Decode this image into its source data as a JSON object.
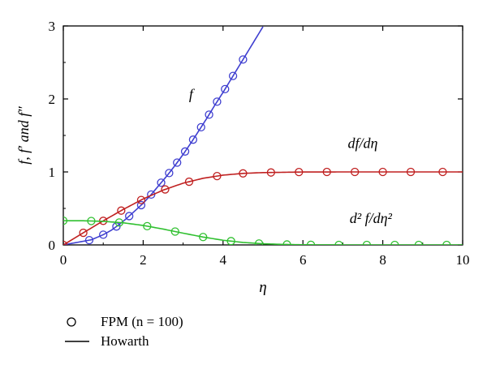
{
  "chart_data": {
    "type": "line",
    "xlabel": "η",
    "ylabel": "f, f′ and f″",
    "xlim": [
      0,
      10
    ],
    "ylim": [
      0,
      3
    ],
    "xticks": [
      "0",
      "2",
      "4",
      "6",
      "8",
      "10"
    ],
    "yticks": [
      "0",
      "1",
      "2",
      "3"
    ],
    "grid": false,
    "legend_position": "bottom-left",
    "series": [
      {
        "name": "f",
        "color": "#3f3fd0",
        "label": "f",
        "x": [
          0,
          0.7,
          1.0,
          1.2,
          1.4,
          1.6,
          1.8,
          2.0,
          2.2,
          2.4,
          2.6,
          2.8,
          3.0,
          3.2,
          3.4,
          3.6,
          3.8,
          4.0,
          4.2,
          4.4,
          4.6
        ],
        "values": [
          0,
          0.07,
          0.14,
          0.2,
          0.28,
          0.37,
          0.47,
          0.57,
          0.69,
          0.82,
          0.95,
          1.09,
          1.24,
          1.4,
          1.57,
          1.74,
          1.92,
          2.09,
          2.27,
          2.45,
          2.63
        ],
        "markers_x": [
          0.65,
          1.0,
          1.33,
          1.65,
          1.95,
          2.2,
          2.45,
          2.65,
          2.85,
          3.05,
          3.25,
          3.45,
          3.65,
          3.85,
          4.05,
          4.25,
          4.5
        ]
      },
      {
        "name": "df/dη",
        "color": "#c02020",
        "label": "df/dη",
        "x": [
          0,
          0.5,
          1.0,
          1.5,
          2.0,
          2.5,
          3.0,
          3.5,
          4.0,
          4.5,
          5.0,
          6.0,
          7.0,
          8.0,
          9.0,
          10.0
        ],
        "values": [
          0,
          0.166,
          0.33,
          0.486,
          0.63,
          0.751,
          0.846,
          0.913,
          0.956,
          0.98,
          0.991,
          0.999,
          1.0,
          1.0,
          1.0,
          1.0
        ],
        "markers_x": [
          0,
          0.5,
          1.0,
          1.45,
          1.95,
          2.55,
          3.15,
          3.85,
          4.5,
          5.2,
          5.9,
          6.6,
          7.3,
          8.0,
          8.7,
          9.5
        ]
      },
      {
        "name": "d²f/dη²",
        "color": "#30c030",
        "label": "d² f/dη²",
        "x": [
          0,
          0.5,
          1.0,
          1.5,
          2.0,
          2.5,
          3.0,
          3.5,
          4.0,
          4.5,
          5.0,
          5.5,
          6.0,
          7.0,
          8.0,
          10.0
        ],
        "values": [
          0.332,
          0.331,
          0.323,
          0.303,
          0.267,
          0.217,
          0.161,
          0.108,
          0.064,
          0.034,
          0.016,
          0.007,
          0.002,
          0.0,
          0.0,
          0.0
        ],
        "markers_x": [
          0,
          0.7,
          1.4,
          2.1,
          2.8,
          3.5,
          4.2,
          4.9,
          5.6,
          6.2,
          6.9,
          7.6,
          8.3,
          8.9,
          9.6
        ]
      }
    ],
    "annotations": [
      {
        "id": "f",
        "text": "f",
        "x": 3.2,
        "y": 2.0
      },
      {
        "id": "dfdeta",
        "text": "df/dη",
        "x": 7.5,
        "y": 1.33
      },
      {
        "id": "d2f",
        "text": "d² f/dη²",
        "x": 7.7,
        "y": 0.3
      }
    ]
  },
  "legend": {
    "items": [
      {
        "label": "FPM (n = 100)",
        "symbol": "circle"
      },
      {
        "label": "Howarth",
        "symbol": "line"
      }
    ]
  }
}
